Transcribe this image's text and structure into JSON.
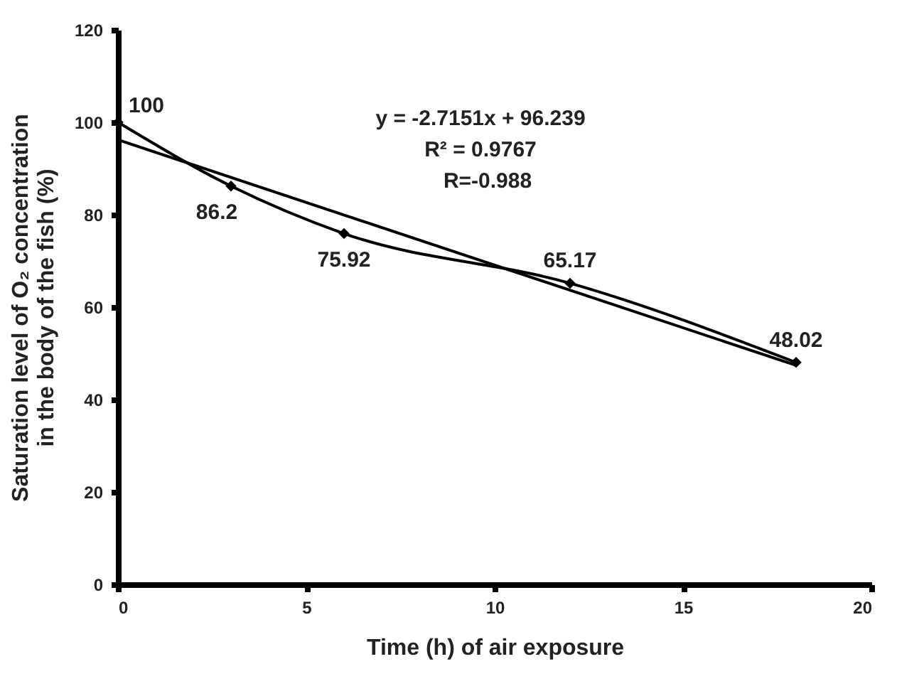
{
  "chart_data": {
    "type": "line",
    "xlabel": "Time (h) of air exposure",
    "ylabel": "Saturation level of O₂ concentration in the body of the fish (%)",
    "x": [
      0,
      3,
      6,
      12,
      18
    ],
    "series": [
      {
        "color": "#000000",
        "values": [
          100,
          86.2,
          75.92,
          65.17,
          48.02
        ],
        "value_labels": [
          "100",
          "86.2",
          "75.92",
          "65.17",
          "48.02"
        ],
        "marker": "diamond"
      },
      {
        "type": "line",
        "color": "#000000",
        "x": [
          0,
          18
        ],
        "values": [
          96.2,
          47.4
        ],
        "marker": "none"
      }
    ],
    "annotations": [
      "y = -2.7151x + 96.239",
      "R² = 0.9767",
      "R=-0.988"
    ],
    "xlim": [
      0,
      20
    ],
    "xticks": [
      0,
      5,
      10,
      15,
      20
    ],
    "ylim": [
      0,
      120
    ],
    "yticks": [
      0,
      20,
      40,
      60,
      80,
      100,
      120
    ],
    "grid": false,
    "line_style": "solid"
  }
}
